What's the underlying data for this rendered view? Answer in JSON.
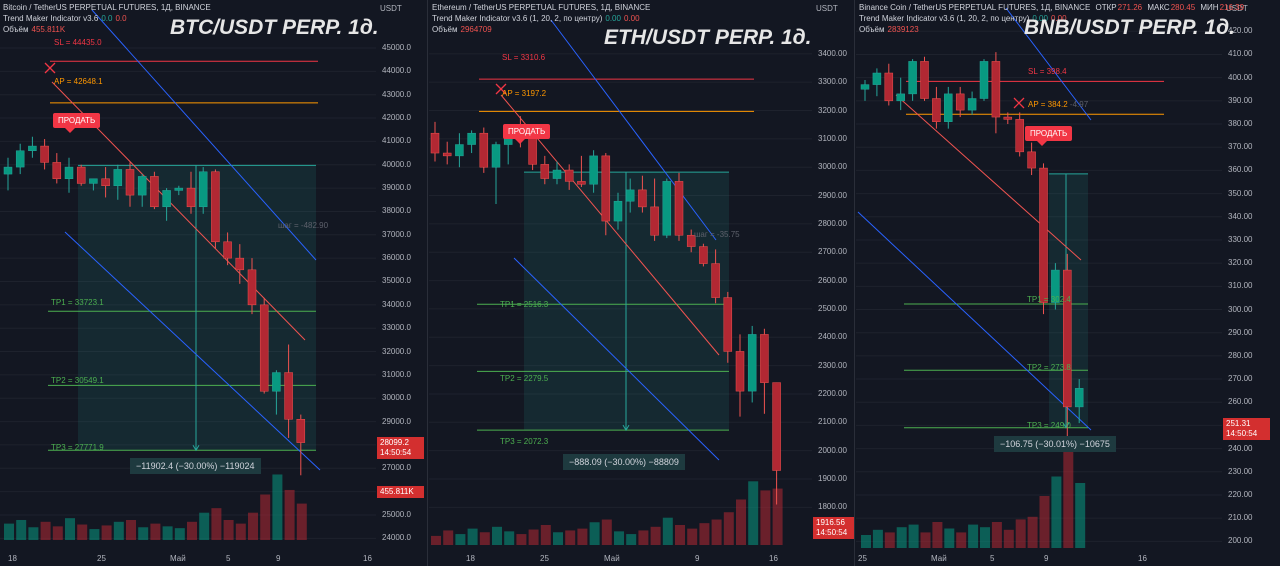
{
  "colors": {
    "up": "#26a69a",
    "upFill": "#089981",
    "down": "#ef5350",
    "downFill": "#b22833",
    "sl": "#f23645",
    "ap": "#ff9800",
    "tp": "#4caf50",
    "zone": "#26a69a",
    "diag": "#2962ff",
    "rdiag": "#ef5350"
  },
  "panels": [
    {
      "id": "btc",
      "header": {
        "line1": "Bitcoin / TetherUS PERPETUAL FUTURES, 1Д, BINANCE",
        "line2": "Trend Maker Indicator v3.6",
        "line2_v1": "0.0",
        "line2_v2": "0.0",
        "line3": "Объём",
        "line3_v": "455.811K"
      },
      "big_title": "BTC/USDT PERP. 1д.",
      "sell_label": "ПРОДАТЬ",
      "levels": {
        "sl": "SL = 44435.0",
        "ap": "AP = 42648.1",
        "tp1": "TP1 = 33723.1",
        "tp2": "TP2 = 30549.1",
        "tp3": "TP3 = 27771.9"
      },
      "step": "шаг = -482.90",
      "result": "−11902.4 (−30.00%) −119024",
      "axis": {
        "unit": "USDT",
        "ticks": [
          "45000.0",
          "44000.0",
          "43000.0",
          "42000.0",
          "41000.0",
          "40000.0",
          "39000.0",
          "38000.0",
          "37000.0",
          "36000.0",
          "35000.0",
          "34000.0",
          "33000.0",
          "32000.0",
          "31000.0",
          "30000.0",
          "29000.0",
          "28000.0",
          "27000.0",
          "26000.0",
          "25000.0",
          "24000.0"
        ],
        "price": "28099.2",
        "price_time": "14:50:54",
        "vol": "455.811K"
      },
      "xticks": [
        "18",
        "25",
        "Май",
        "5",
        "9",
        "16"
      ]
    },
    {
      "id": "eth",
      "header": {
        "line1": "Ethereum / TetherUS PERPETUAL FUTURES, 1Д, BINANCE",
        "line2": "Trend Maker Indicator v3.6 (1, 20, 2, по центру)",
        "line2_v1": "0.00",
        "line2_v2": "0.00",
        "line3": "Объём",
        "line3_v": "2964709"
      },
      "big_title": "ETH/USDT PERP. 1д.",
      "sell_label": "ПРОДАТЬ",
      "levels": {
        "sl": "SL = 3310.6",
        "ap": "AP = 3197.2",
        "tp1": "TP1 = 2516.3",
        "tp2": "TP2 = 2279.5",
        "tp3": "TP3 = 2072.3"
      },
      "step": "шаг = -35.75",
      "result": "−888.09 (−30.00%) −88809",
      "axis": {
        "unit": "USDT",
        "ticks": [
          "3400.00",
          "3300.00",
          "3200.00",
          "3100.00",
          "3000.00",
          "2900.00",
          "2800.00",
          "2700.00",
          "2600.00",
          "2500.00",
          "2400.00",
          "2300.00",
          "2200.00",
          "2100.00",
          "2000.00",
          "1900.00",
          "1800.00"
        ],
        "price": "1916.56",
        "price_time": "14:50:54"
      },
      "xticks": [
        "18",
        "25",
        "Май",
        "9",
        "16"
      ]
    },
    {
      "id": "bnb",
      "header": {
        "line1": "Binance Coin / TetherUS PERPETUAL FUTURES, 1Д, BINANCE",
        "line1_o": "ОТКР",
        "line1_ov": "271.26",
        "line1_h": "МАКС",
        "line1_hv": "280.45",
        "line1_l": "МИН",
        "line1_lv": "216.39",
        "line2": "Trend Maker Indicator v3.6 (1, 20, 2, по центру)",
        "line2_v1": "0.00",
        "line2_v2": "0.00",
        "line3": "Объём",
        "line3_v": "2839123"
      },
      "big_title": "BNB/USDT PERP. 1д.",
      "sell_label": "ПРОДАТЬ",
      "levels": {
        "sl": "SL = 398.4",
        "ap": "AP = 384.2",
        "ap_extra": "-4.97",
        "tp1": "TP1 = 302.4",
        "tp2": "TP2 = 273.8",
        "tp3": "TP3 = 249.0"
      },
      "result": "−106.75 (−30.01%) −10675",
      "axis": {
        "unit": "USDT",
        "ticks": [
          "420.00",
          "410.00",
          "400.00",
          "390.00",
          "380.00",
          "370.00",
          "360.00",
          "350.00",
          "340.00",
          "330.00",
          "320.00",
          "310.00",
          "300.00",
          "290.00",
          "280.00",
          "270.00",
          "260.00",
          "250.00",
          "240.00",
          "230.00",
          "220.00",
          "210.00",
          "200.00"
        ],
        "price": "251.31",
        "price_time": "14:50:54"
      },
      "xticks": [
        "25",
        "Май",
        "5",
        "9",
        "16"
      ]
    }
  ],
  "chart_data": [
    {
      "type": "candlestick",
      "title": "BTC/USDT PERP. 1д.",
      "ylim": [
        23800,
        45600
      ],
      "candles": [
        [
          39600,
          40300,
          38900,
          39900
        ],
        [
          39900,
          40900,
          39600,
          40600
        ],
        [
          40600,
          41200,
          40300,
          40800
        ],
        [
          40800,
          41100,
          39800,
          40100
        ],
        [
          40100,
          40500,
          39200,
          39400
        ],
        [
          39400,
          40300,
          38800,
          39900
        ],
        [
          39900,
          40000,
          39100,
          39200
        ],
        [
          39200,
          39400,
          38900,
          39400
        ],
        [
          39400,
          39900,
          38600,
          39100
        ],
        [
          39100,
          40000,
          38500,
          39800
        ],
        [
          39800,
          40100,
          38200,
          38700
        ],
        [
          38700,
          39600,
          38200,
          39500
        ],
        [
          39500,
          39700,
          38100,
          38200
        ],
        [
          38200,
          39000,
          37600,
          38900
        ],
        [
          38900,
          39100,
          38700,
          39000
        ],
        [
          39000,
          39700,
          37900,
          38200
        ],
        [
          38200,
          39900,
          37900,
          39700
        ],
        [
          39700,
          39800,
          36400,
          36700
        ],
        [
          36700,
          37100,
          35700,
          36000
        ],
        [
          36000,
          36600,
          34900,
          35500
        ],
        [
          35500,
          36000,
          33600,
          34000
        ],
        [
          34000,
          34300,
          30200,
          30300
        ],
        [
          30300,
          31200,
          29300,
          31100
        ],
        [
          31100,
          32300,
          28300,
          29100
        ],
        [
          29100,
          29300,
          26700,
          28100
        ]
      ],
      "volume": [
        0.18,
        0.22,
        0.14,
        0.2,
        0.15,
        0.24,
        0.17,
        0.12,
        0.16,
        0.2,
        0.22,
        0.14,
        0.18,
        0.15,
        0.13,
        0.2,
        0.3,
        0.35,
        0.22,
        0.18,
        0.3,
        0.5,
        0.72,
        0.55,
        0.4
      ]
    },
    {
      "type": "candlestick",
      "title": "ETH/USDT PERP. 1д.",
      "ylim": [
        1720,
        3470
      ],
      "candles": [
        [
          3120,
          3160,
          3020,
          3050
        ],
        [
          3050,
          3090,
          3010,
          3040
        ],
        [
          3040,
          3120,
          3000,
          3080
        ],
        [
          3080,
          3130,
          3050,
          3120
        ],
        [
          3120,
          3140,
          2980,
          3000
        ],
        [
          3000,
          3090,
          2870,
          3080
        ],
        [
          3080,
          3150,
          3010,
          3130
        ],
        [
          3130,
          3180,
          3070,
          3120
        ],
        [
          3120,
          3130,
          2990,
          3010
        ],
        [
          3010,
          3040,
          2940,
          2960
        ],
        [
          2960,
          3020,
          2940,
          2990
        ],
        [
          2990,
          3010,
          2920,
          2950
        ],
        [
          2950,
          3040,
          2930,
          2940
        ],
        [
          2940,
          3060,
          2910,
          3040
        ],
        [
          3040,
          3050,
          2760,
          2810
        ],
        [
          2810,
          2910,
          2780,
          2880
        ],
        [
          2880,
          2960,
          2840,
          2920
        ],
        [
          2920,
          2970,
          2840,
          2860
        ],
        [
          2860,
          2960,
          2740,
          2760
        ],
        [
          2760,
          2960,
          2750,
          2950
        ],
        [
          2950,
          2980,
          2740,
          2760
        ],
        [
          2760,
          2780,
          2700,
          2720
        ],
        [
          2720,
          2730,
          2650,
          2660
        ],
        [
          2660,
          2710,
          2520,
          2540
        ],
        [
          2540,
          2560,
          2310,
          2350
        ],
        [
          2350,
          2410,
          2120,
          2210
        ],
        [
          2210,
          2440,
          2170,
          2410
        ],
        [
          2410,
          2430,
          2130,
          2240
        ],
        [
          2240,
          2240,
          1810,
          1930
        ]
      ],
      "volume": [
        0.1,
        0.16,
        0.12,
        0.18,
        0.14,
        0.2,
        0.15,
        0.12,
        0.17,
        0.22,
        0.14,
        0.16,
        0.18,
        0.25,
        0.28,
        0.15,
        0.12,
        0.16,
        0.2,
        0.3,
        0.22,
        0.18,
        0.24,
        0.28,
        0.36,
        0.5,
        0.7,
        0.6,
        0.62
      ]
    },
    {
      "type": "candlestick",
      "title": "BNB/USDT PERP. 1д.",
      "ylim": [
        198,
        424
      ],
      "candles": [
        [
          395,
          399,
          390,
          397
        ],
        [
          397,
          404,
          392,
          402
        ],
        [
          402,
          406,
          388,
          390
        ],
        [
          390,
          400,
          386,
          393
        ],
        [
          393,
          408,
          390,
          407
        ],
        [
          407,
          409,
          390,
          391
        ],
        [
          391,
          396,
          378,
          381
        ],
        [
          381,
          396,
          378,
          393
        ],
        [
          393,
          396,
          383,
          386
        ],
        [
          386,
          394,
          384,
          391
        ],
        [
          391,
          408,
          390,
          407
        ],
        [
          407,
          411,
          376,
          383
        ],
        [
          383,
          385,
          380,
          382
        ],
        [
          382,
          385,
          366,
          368
        ],
        [
          368,
          372,
          358,
          361
        ],
        [
          361,
          363,
          298,
          303
        ],
        [
          303,
          320,
          300,
          317
        ],
        [
          317,
          324,
          240,
          258
        ],
        [
          258,
          270,
          251,
          266
        ]
      ],
      "volume": [
        0.1,
        0.14,
        0.12,
        0.16,
        0.18,
        0.12,
        0.2,
        0.15,
        0.12,
        0.18,
        0.16,
        0.2,
        0.14,
        0.22,
        0.24,
        0.4,
        0.55,
        0.75,
        0.5
      ]
    }
  ]
}
